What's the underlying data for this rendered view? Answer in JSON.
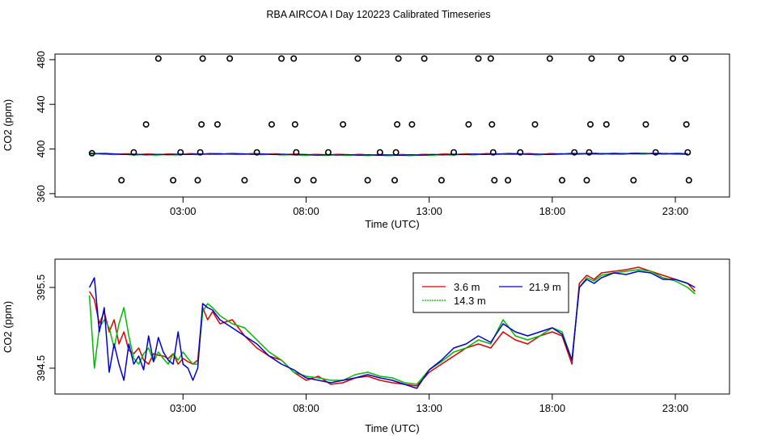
{
  "title": "RBA AIRCOA I  Day 120223  Calibrated Timeseries",
  "colors": {
    "s1": "#dd0000",
    "s2": "#00bb00",
    "s3": "#0000cc",
    "frame": "#000000"
  },
  "chart_data": [
    {
      "type": "scatter",
      "ylabel": "CO2 (ppm)",
      "xlabel": "Time (UTC)",
      "xlim": [
        -2.2,
        25.2
      ],
      "ylim": [
        357,
        485
      ],
      "xticks": [
        {
          "v": 3,
          "label": "03:00"
        },
        {
          "v": 8,
          "label": "08:00"
        },
        {
          "v": 13,
          "label": "13:00"
        },
        {
          "v": 18,
          "label": "18:00"
        },
        {
          "v": 23,
          "label": "23:00"
        }
      ],
      "yticks": [
        {
          "v": 360,
          "label": "360"
        },
        {
          "v": 400,
          "label": "400"
        },
        {
          "v": 440,
          "label": "440"
        },
        {
          "v": 480,
          "label": "480"
        }
      ],
      "points": [
        [
          -0.7,
          396.2
        ],
        [
          0.5,
          372
        ],
        [
          1.0,
          397
        ],
        [
          1.5,
          422
        ],
        [
          2.0,
          481
        ],
        [
          2.6,
          372
        ],
        [
          2.9,
          397
        ],
        [
          3.6,
          372
        ],
        [
          3.7,
          397
        ],
        [
          3.75,
          422
        ],
        [
          3.8,
          481
        ],
        [
          4.4,
          422
        ],
        [
          4.9,
          481
        ],
        [
          5.5,
          372
        ],
        [
          6.0,
          397
        ],
        [
          6.6,
          422
        ],
        [
          7.0,
          481
        ],
        [
          7.5,
          481
        ],
        [
          7.55,
          422
        ],
        [
          7.6,
          397
        ],
        [
          7.65,
          372
        ],
        [
          8.3,
          372
        ],
        [
          8.9,
          397
        ],
        [
          9.5,
          422
        ],
        [
          10.1,
          481
        ],
        [
          10.5,
          372
        ],
        [
          11.0,
          397
        ],
        [
          11.6,
          372
        ],
        [
          11.65,
          397
        ],
        [
          11.7,
          422
        ],
        [
          11.75,
          481
        ],
        [
          12.3,
          422
        ],
        [
          12.8,
          481
        ],
        [
          13.5,
          372
        ],
        [
          14.0,
          397
        ],
        [
          14.6,
          422
        ],
        [
          15.0,
          481
        ],
        [
          15.5,
          481
        ],
        [
          15.55,
          422
        ],
        [
          15.6,
          397
        ],
        [
          15.65,
          372
        ],
        [
          16.2,
          372
        ],
        [
          16.7,
          397
        ],
        [
          17.3,
          422
        ],
        [
          17.9,
          481
        ],
        [
          18.4,
          372
        ],
        [
          18.9,
          397
        ],
        [
          19.4,
          372
        ],
        [
          19.5,
          397
        ],
        [
          19.55,
          422
        ],
        [
          19.6,
          481
        ],
        [
          20.2,
          422
        ],
        [
          20.8,
          481
        ],
        [
          21.3,
          372
        ],
        [
          21.8,
          422
        ],
        [
          22.2,
          397
        ],
        [
          22.9,
          481
        ],
        [
          23.4,
          481
        ],
        [
          23.45,
          422
        ],
        [
          23.5,
          397
        ],
        [
          23.55,
          372
        ]
      ],
      "baseline": {
        "x": [
          -0.8,
          0.5,
          1.5,
          2.5,
          3.5,
          4.5,
          5.5,
          6.5,
          7.5,
          8.5,
          9.5,
          10.5,
          11.5,
          12.5,
          13.5,
          14.5,
          15.5,
          16.5,
          17.5,
          18.5,
          19.5,
          20.5,
          21.5,
          22.5,
          23.5
        ],
        "y": [
          396.0,
          395.3,
          395.0,
          395.1,
          395.4,
          395.6,
          395.5,
          395.3,
          395.0,
          394.7,
          394.8,
          394.6,
          394.5,
          394.6,
          395.0,
          395.2,
          395.4,
          395.6,
          395.2,
          395.6,
          395.8,
          395.7,
          395.9,
          395.8,
          395.6
        ]
      }
    },
    {
      "type": "line",
      "ylabel": "CO2 (ppm)",
      "xlabel": "Time (UTC)",
      "xlim": [
        -2.2,
        25.2
      ],
      "ylim": [
        394.18,
        395.85
      ],
      "xticks": [
        {
          "v": 3,
          "label": "03:00"
        },
        {
          "v": 8,
          "label": "08:00"
        },
        {
          "v": 13,
          "label": "13:00"
        },
        {
          "v": 18,
          "label": "18:00"
        },
        {
          "v": 23,
          "label": "23:00"
        }
      ],
      "yticks": [
        {
          "v": 394.5,
          "label": "394.5"
        },
        {
          "v": 395.5,
          "label": "395.5"
        }
      ],
      "x": [
        -0.8,
        -0.6,
        -0.4,
        -0.2,
        0.0,
        0.2,
        0.4,
        0.6,
        0.8,
        1.0,
        1.2,
        1.4,
        1.6,
        1.8,
        2.0,
        2.2,
        2.4,
        2.6,
        2.8,
        3.0,
        3.2,
        3.4,
        3.6,
        3.8,
        4.0,
        4.2,
        4.5,
        5.0,
        5.5,
        6.0,
        6.5,
        7.0,
        7.5,
        8.0,
        8.5,
        9.0,
        9.5,
        10.0,
        10.5,
        11.0,
        11.5,
        12.0,
        12.5,
        13.0,
        13.5,
        14.0,
        14.5,
        15.0,
        15.5,
        16.0,
        16.5,
        17.0,
        17.5,
        18.0,
        18.4,
        18.8,
        19.1,
        19.4,
        19.7,
        20.0,
        20.5,
        21.0,
        21.5,
        22.0,
        22.5,
        23.0,
        23.5,
        23.8
      ],
      "series": [
        {
          "name": "3.6 m",
          "color_key": "s1",
          "values": [
            395.45,
            395.35,
            395.05,
            395.2,
            394.95,
            395.1,
            394.8,
            394.95,
            394.72,
            394.68,
            394.75,
            394.6,
            394.55,
            394.68,
            394.66,
            394.65,
            394.62,
            394.68,
            394.55,
            394.62,
            394.58,
            394.55,
            394.6,
            395.25,
            395.1,
            395.2,
            395.05,
            395.1,
            394.9,
            394.75,
            394.65,
            394.6,
            394.45,
            394.35,
            394.4,
            394.3,
            394.32,
            394.38,
            394.4,
            394.35,
            394.32,
            394.3,
            394.28,
            394.45,
            394.55,
            394.65,
            394.75,
            394.8,
            394.75,
            394.95,
            394.85,
            394.8,
            394.9,
            394.95,
            394.9,
            394.55,
            395.55,
            395.65,
            395.6,
            395.68,
            395.7,
            395.72,
            395.75,
            395.7,
            395.65,
            395.6,
            395.55,
            395.45
          ]
        },
        {
          "name": "14.3 m",
          "color_key": "s2",
          "values": [
            395.4,
            394.5,
            395.0,
            395.1,
            395.0,
            394.75,
            395.05,
            395.25,
            394.9,
            394.62,
            394.55,
            394.68,
            394.75,
            394.58,
            394.7,
            394.62,
            394.55,
            394.68,
            394.6,
            394.7,
            394.62,
            394.55,
            394.55,
            395.2,
            395.3,
            395.25,
            395.15,
            395.05,
            395.0,
            394.85,
            394.7,
            394.6,
            394.45,
            394.4,
            394.38,
            394.35,
            394.35,
            394.42,
            394.45,
            394.4,
            394.38,
            394.32,
            394.3,
            394.48,
            394.58,
            394.7,
            394.75,
            394.85,
            394.8,
            395.1,
            394.9,
            394.85,
            394.9,
            395.0,
            394.95,
            394.6,
            395.5,
            395.62,
            395.58,
            395.65,
            395.68,
            395.7,
            395.72,
            395.7,
            395.62,
            395.58,
            395.5,
            395.42
          ]
        },
        {
          "name": "21.9 m",
          "color_key": "s3",
          "values": [
            395.5,
            395.62,
            394.95,
            395.25,
            394.45,
            394.8,
            394.55,
            394.35,
            394.8,
            394.55,
            394.65,
            394.48,
            394.9,
            394.58,
            394.88,
            394.7,
            394.6,
            394.55,
            394.95,
            394.55,
            394.5,
            394.35,
            394.5,
            395.3,
            395.25,
            395.22,
            395.1,
            395.0,
            394.9,
            394.8,
            394.65,
            394.55,
            394.48,
            394.38,
            394.35,
            394.32,
            394.35,
            394.38,
            394.42,
            394.38,
            394.35,
            394.3,
            394.25,
            394.48,
            394.6,
            394.75,
            394.8,
            394.9,
            394.82,
            395.05,
            394.95,
            394.9,
            394.95,
            395.0,
            394.92,
            394.6,
            395.5,
            395.6,
            395.55,
            395.62,
            395.68,
            395.66,
            395.7,
            395.68,
            395.6,
            395.6,
            395.55,
            395.5
          ]
        }
      ]
    }
  ]
}
